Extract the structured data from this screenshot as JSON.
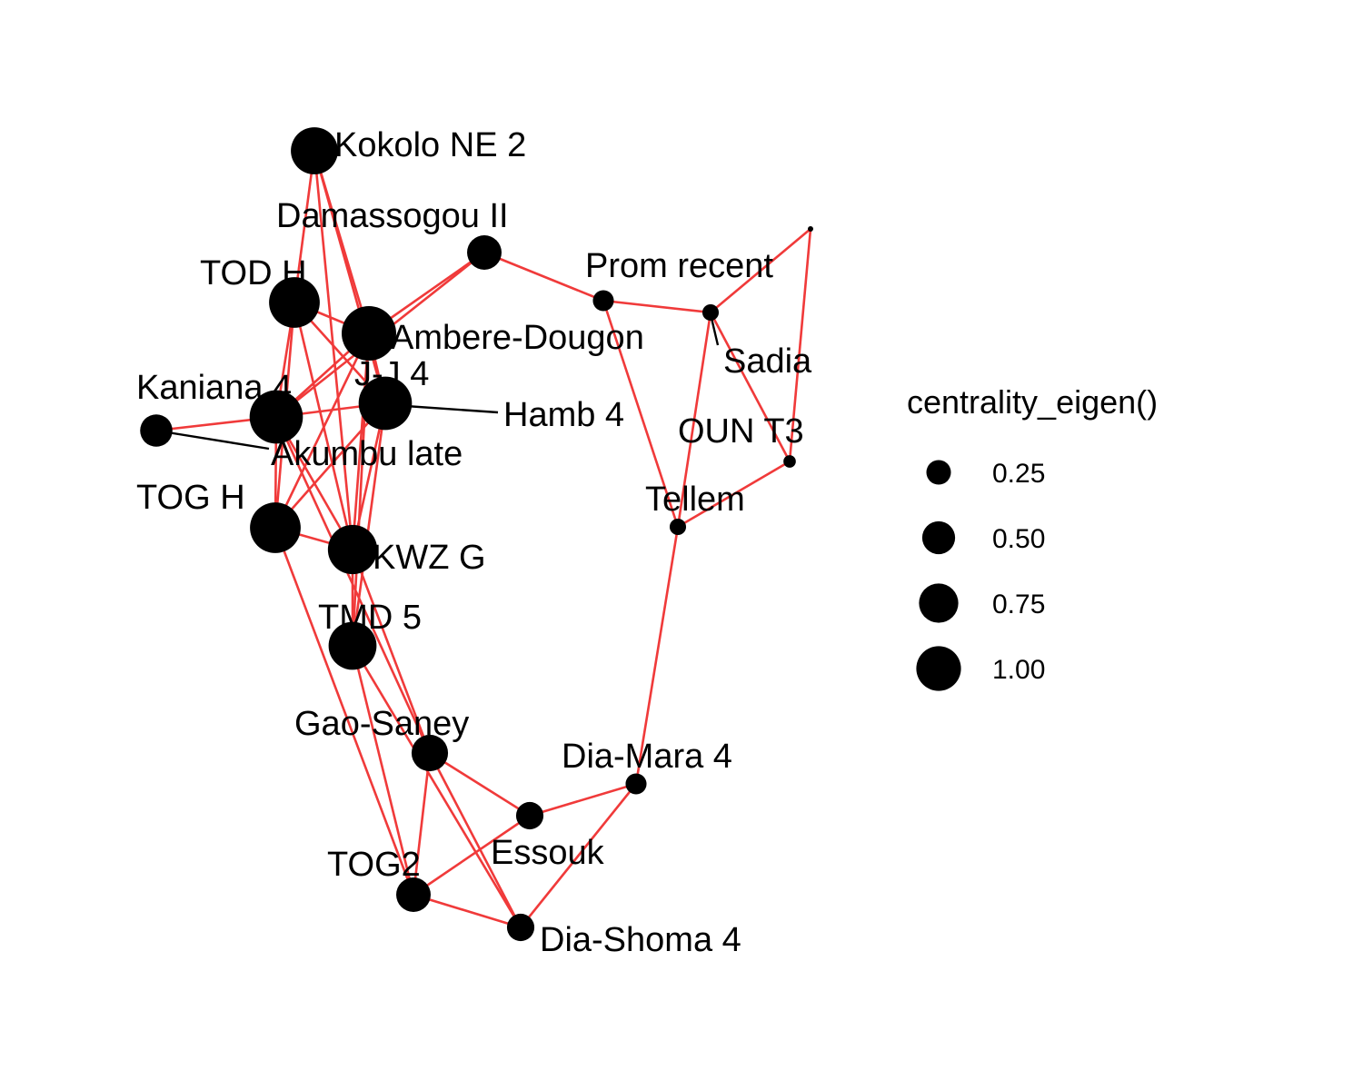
{
  "legend": {
    "title": "centrality_eigen()",
    "entries": [
      {
        "label": "0.25",
        "value": 0.25
      },
      {
        "label": "0.50",
        "value": 0.5
      },
      {
        "label": "0.75",
        "value": 0.75
      },
      {
        "label": "1.00",
        "value": 1.0
      }
    ]
  },
  "colors": {
    "edge": "#f03a3a",
    "node": "#000000",
    "leader": "#000000"
  },
  "nodes": [
    {
      "id": "kokolo",
      "label": "Kokolo NE 2",
      "value": 0.72
    },
    {
      "id": "damassogou",
      "label": "Damassogou II",
      "value": 0.35
    },
    {
      "id": "todh",
      "label": "TOD H",
      "value": 0.85
    },
    {
      "id": "ambere",
      "label": "Ambere-Dougon",
      "value": 1.0
    },
    {
      "id": "jj4",
      "label": "J-J 4",
      "value": 0.95
    },
    {
      "id": "kaniana",
      "label": "Kaniana 4",
      "value": 0.95
    },
    {
      "id": "akumbu",
      "label": "Akumbu late",
      "value": 0.3
    },
    {
      "id": "hamb4",
      "label": "Hamb 4",
      "value": 0.0
    },
    {
      "id": "togh",
      "label": "TOG H",
      "value": 0.85
    },
    {
      "id": "kwzg",
      "label": "KWZ G",
      "value": 0.8
    },
    {
      "id": "tmd5",
      "label": "TMD 5",
      "value": 0.75
    },
    {
      "id": "gaosaney",
      "label": "Gao-Saney",
      "value": 0.4
    },
    {
      "id": "tog2",
      "label": "TOG2",
      "value": 0.35
    },
    {
      "id": "essouk",
      "label": "Essouk",
      "value": 0.2
    },
    {
      "id": "diashoma",
      "label": "Dia-Shoma 4",
      "value": 0.2
    },
    {
      "id": "diamara",
      "label": "Dia-Mara 4",
      "value": 0.1
    },
    {
      "id": "tellem",
      "label": "Tellem",
      "value": 0.05
    },
    {
      "id": "promrecent",
      "label": "Prom recent",
      "value": 0.1
    },
    {
      "id": "sadia",
      "label": "Sadia",
      "value": 0.05
    },
    {
      "id": "ount3",
      "label": "OUN T3",
      "value": 0.02
    },
    {
      "id": "unnamed",
      "label": "",
      "value": 0.0
    }
  ],
  "edges": [
    [
      "kokolo",
      "todh"
    ],
    [
      "kokolo",
      "ambere"
    ],
    [
      "kokolo",
      "jj4"
    ],
    [
      "kokolo",
      "kwzg"
    ],
    [
      "damassogou",
      "ambere"
    ],
    [
      "damassogou",
      "kaniana"
    ],
    [
      "damassogou",
      "promrecent"
    ],
    [
      "todh",
      "ambere"
    ],
    [
      "todh",
      "jj4"
    ],
    [
      "todh",
      "kaniana"
    ],
    [
      "todh",
      "togh"
    ],
    [
      "todh",
      "kwzg"
    ],
    [
      "ambere",
      "jj4"
    ],
    [
      "ambere",
      "kaniana"
    ],
    [
      "ambere",
      "togh"
    ],
    [
      "ambere",
      "kwzg"
    ],
    [
      "ambere",
      "tmd5"
    ],
    [
      "jj4",
      "kaniana"
    ],
    [
      "jj4",
      "togh"
    ],
    [
      "jj4",
      "kwzg"
    ],
    [
      "jj4",
      "tmd5"
    ],
    [
      "kaniana",
      "togh"
    ],
    [
      "kaniana",
      "kwzg"
    ],
    [
      "kaniana",
      "akumbu"
    ],
    [
      "kaniana",
      "gaosaney"
    ],
    [
      "togh",
      "kwzg"
    ],
    [
      "togh",
      "tog2"
    ],
    [
      "kwzg",
      "gaosaney"
    ],
    [
      "kwzg",
      "tmd5"
    ],
    [
      "tmd5",
      "tog2"
    ],
    [
      "tmd5",
      "diashoma"
    ],
    [
      "gaosaney",
      "tog2"
    ],
    [
      "gaosaney",
      "essouk"
    ],
    [
      "gaosaney",
      "diashoma"
    ],
    [
      "tog2",
      "essouk"
    ],
    [
      "tog2",
      "diashoma"
    ],
    [
      "essouk",
      "diamara"
    ],
    [
      "diashoma",
      "diamara"
    ],
    [
      "diamara",
      "tellem"
    ],
    [
      "tellem",
      "promrecent"
    ],
    [
      "tellem",
      "sadia"
    ],
    [
      "tellem",
      "ount3"
    ],
    [
      "promrecent",
      "sadia"
    ],
    [
      "sadia",
      "unnamed"
    ],
    [
      "sadia",
      "ount3"
    ],
    [
      "ount3",
      "unnamed"
    ]
  ]
}
